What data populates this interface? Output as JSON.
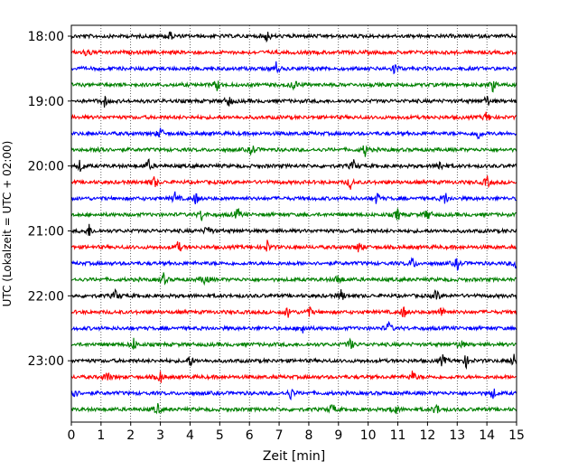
{
  "chart_data": {
    "type": "line",
    "title": "",
    "xlabel": "Zeit  [min]",
    "ylabel": "UTC (Lokalzeit = UTC + 02:00)",
    "xlim": [
      0,
      15
    ],
    "x_ticks": [
      0,
      1,
      2,
      3,
      4,
      5,
      6,
      7,
      8,
      9,
      10,
      11,
      12,
      13,
      14,
      15
    ],
    "y_tick_labels": [
      "18:00",
      "19:00",
      "20:00",
      "21:00",
      "22:00",
      "23:00"
    ],
    "grid": "vertical dotted",
    "traces_per_hour": 4,
    "trace_colors": [
      "#000000",
      "#ff0000",
      "#0000ff",
      "#008000"
    ],
    "series": [
      {
        "start": "18:00",
        "color": "#000000",
        "events": [
          3.3,
          6.6
        ]
      },
      {
        "start": "18:15",
        "color": "#ff0000",
        "events": [
          0.55
        ]
      },
      {
        "start": "18:30",
        "color": "#0000ff",
        "events": [
          6.9,
          10.9
        ]
      },
      {
        "start": "18:45",
        "color": "#008000",
        "events": [
          4.9,
          7.5,
          14.2
        ]
      },
      {
        "start": "19:00",
        "color": "#000000",
        "events": [
          1.1,
          5.3,
          14.0
        ]
      },
      {
        "start": "19:15",
        "color": "#ff0000",
        "events": [
          14.0
        ]
      },
      {
        "start": "19:30",
        "color": "#0000ff",
        "events": [
          3.0,
          13.7
        ]
      },
      {
        "start": "19:45",
        "color": "#008000",
        "events": [
          1.0,
          6.1,
          9.9
        ]
      },
      {
        "start": "20:00",
        "color": "#000000",
        "events": [
          0.3,
          2.6,
          9.5,
          12.4
        ]
      },
      {
        "start": "20:15",
        "color": "#ff0000",
        "events": [
          2.8,
          9.4,
          14.0
        ]
      },
      {
        "start": "20:30",
        "color": "#0000ff",
        "events": [
          3.5,
          4.2,
          10.3,
          12.6
        ]
      },
      {
        "start": "20:45",
        "color": "#008000",
        "events": [
          4.4,
          5.6,
          11.0,
          12.0
        ]
      },
      {
        "start": "21:00",
        "color": "#000000",
        "events": [
          0.6,
          4.6
        ]
      },
      {
        "start": "21:15",
        "color": "#ff0000",
        "events": [
          3.6,
          6.6,
          9.7
        ]
      },
      {
        "start": "21:30",
        "color": "#0000ff",
        "events": [
          11.5,
          13.0,
          15.0
        ]
      },
      {
        "start": "21:45",
        "color": "#008000",
        "events": [
          3.1,
          4.5,
          9.0
        ]
      },
      {
        "start": "22:00",
        "color": "#000000",
        "events": [
          1.5,
          9.1,
          12.3
        ]
      },
      {
        "start": "22:15",
        "color": "#ff0000",
        "events": [
          7.3,
          8.0,
          11.2,
          12.5
        ]
      },
      {
        "start": "22:30",
        "color": "#0000ff",
        "events": [
          7.8,
          10.7
        ]
      },
      {
        "start": "22:45",
        "color": "#008000",
        "events": [
          2.1,
          9.4,
          13.1
        ]
      },
      {
        "start": "23:00",
        "color": "#000000",
        "events": [
          4.0,
          12.5,
          13.3,
          14.9
        ]
      },
      {
        "start": "23:15",
        "color": "#ff0000",
        "events": [
          1.2,
          3.0,
          11.5
        ]
      },
      {
        "start": "23:30",
        "color": "#0000ff",
        "events": [
          0.1,
          7.4,
          14.2
        ]
      },
      {
        "start": "23:45",
        "color": "#008000",
        "events": [
          2.9,
          8.8,
          10.9,
          12.3
        ]
      }
    ]
  }
}
